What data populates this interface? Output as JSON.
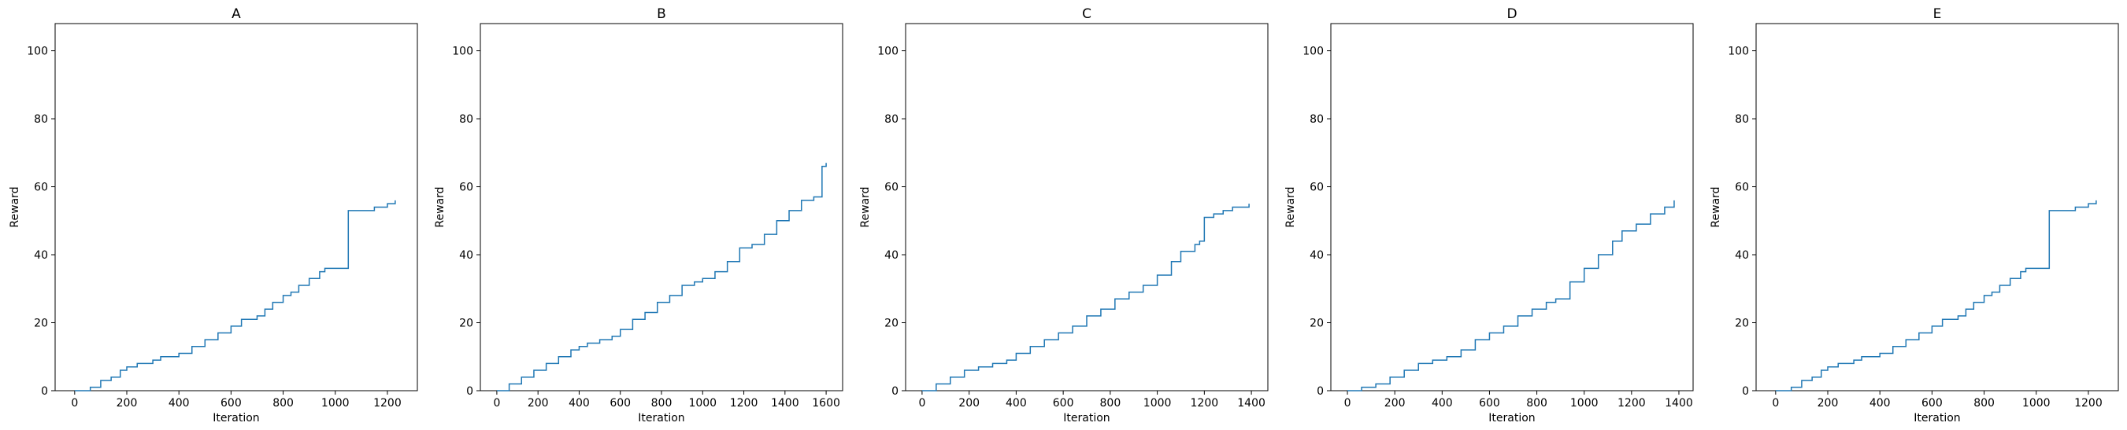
{
  "figure": {
    "background": "#ffffff",
    "line_color": "#1f77b4"
  },
  "chart_data": [
    {
      "type": "line",
      "title": "A",
      "xlabel": "Iteration",
      "ylabel": "Reward",
      "xlim": [
        -75,
        1315
      ],
      "ylim": [
        0,
        108
      ],
      "xticks": [
        0,
        200,
        400,
        600,
        800,
        1000,
        1200
      ],
      "yticks": [
        0,
        20,
        40,
        60,
        80,
        100
      ],
      "grid": false,
      "step": true,
      "series": [
        {
          "x": [
            0,
            60,
            100,
            140,
            175,
            200,
            240,
            300,
            330,
            360,
            400,
            450,
            500,
            550,
            600,
            640,
            700,
            730,
            760,
            800,
            830,
            860,
            900,
            940,
            960,
            1000,
            1050,
            1100,
            1150,
            1200,
            1230
          ],
          "y": [
            0,
            1,
            3,
            4,
            6,
            7,
            8,
            9,
            10,
            10,
            11,
            13,
            15,
            17,
            19,
            21,
            22,
            24,
            26,
            28,
            29,
            31,
            33,
            35,
            36,
            36,
            53,
            53,
            54,
            55,
            56
          ]
        }
      ]
    },
    {
      "type": "line",
      "title": "B",
      "xlabel": "Iteration",
      "ylabel": "Reward",
      "xlim": [
        -80,
        1680
      ],
      "ylim": [
        0,
        108
      ],
      "xticks": [
        0,
        200,
        400,
        600,
        800,
        1000,
        1200,
        1400,
        1600
      ],
      "yticks": [
        0,
        20,
        40,
        60,
        80,
        100
      ],
      "grid": false,
      "step": true,
      "series": [
        {
          "x": [
            0,
            60,
            120,
            180,
            240,
            300,
            360,
            400,
            440,
            500,
            560,
            600,
            660,
            720,
            780,
            840,
            900,
            960,
            1000,
            1060,
            1120,
            1180,
            1240,
            1300,
            1360,
            1420,
            1480,
            1540,
            1580,
            1600
          ],
          "y": [
            0,
            2,
            4,
            6,
            8,
            10,
            12,
            13,
            14,
            15,
            16,
            18,
            21,
            23,
            26,
            28,
            31,
            32,
            33,
            35,
            38,
            42,
            43,
            46,
            50,
            53,
            56,
            57,
            66,
            67
          ]
        }
      ]
    },
    {
      "type": "line",
      "title": "C",
      "xlabel": "Iteration",
      "ylabel": "Reward",
      "xlim": [
        -70,
        1470
      ],
      "ylim": [
        0,
        108
      ],
      "xticks": [
        0,
        200,
        400,
        600,
        800,
        1000,
        1200,
        1400
      ],
      "yticks": [
        0,
        20,
        40,
        60,
        80,
        100
      ],
      "grid": false,
      "step": true,
      "series": [
        {
          "x": [
            0,
            60,
            120,
            180,
            240,
            300,
            360,
            400,
            460,
            520,
            580,
            640,
            700,
            760,
            820,
            880,
            940,
            1000,
            1060,
            1100,
            1160,
            1180,
            1200,
            1240,
            1280,
            1320,
            1360,
            1390
          ],
          "y": [
            0,
            2,
            4,
            6,
            7,
            8,
            9,
            11,
            13,
            15,
            17,
            19,
            22,
            24,
            27,
            29,
            31,
            34,
            38,
            41,
            43,
            44,
            51,
            52,
            53,
            54,
            54,
            55
          ]
        }
      ]
    },
    {
      "type": "line",
      "title": "D",
      "xlabel": "Iteration",
      "ylabel": "Reward",
      "xlim": [
        -70,
        1460
      ],
      "ylim": [
        0,
        108
      ],
      "xticks": [
        0,
        200,
        400,
        600,
        800,
        1000,
        1200,
        1400
      ],
      "yticks": [
        0,
        20,
        40,
        60,
        80,
        100
      ],
      "grid": false,
      "step": true,
      "series": [
        {
          "x": [
            0,
            60,
            120,
            180,
            240,
            300,
            360,
            420,
            480,
            540,
            600,
            660,
            720,
            780,
            840,
            880,
            940,
            1000,
            1060,
            1120,
            1160,
            1220,
            1280,
            1340,
            1380
          ],
          "y": [
            0,
            1,
            2,
            4,
            6,
            8,
            9,
            10,
            12,
            15,
            17,
            19,
            22,
            24,
            26,
            27,
            32,
            36,
            40,
            44,
            47,
            49,
            52,
            54,
            56
          ]
        }
      ]
    },
    {
      "type": "line",
      "title": "E",
      "xlabel": "Iteration",
      "ylabel": "Reward",
      "xlim": [
        -75,
        1315
      ],
      "ylim": [
        0,
        108
      ],
      "xticks": [
        0,
        200,
        400,
        600,
        800,
        1000,
        1200
      ],
      "yticks": [
        0,
        20,
        40,
        60,
        80,
        100
      ],
      "grid": false,
      "step": true,
      "series": [
        {
          "x": [
            0,
            60,
            100,
            140,
            175,
            200,
            240,
            300,
            330,
            360,
            400,
            450,
            500,
            550,
            600,
            640,
            700,
            730,
            760,
            800,
            830,
            860,
            900,
            940,
            960,
            1000,
            1050,
            1100,
            1150,
            1200,
            1230
          ],
          "y": [
            0,
            1,
            3,
            4,
            6,
            7,
            8,
            9,
            10,
            10,
            11,
            13,
            15,
            17,
            19,
            21,
            22,
            24,
            26,
            28,
            29,
            31,
            33,
            35,
            36,
            36,
            53,
            53,
            54,
            55,
            56
          ]
        }
      ]
    }
  ]
}
